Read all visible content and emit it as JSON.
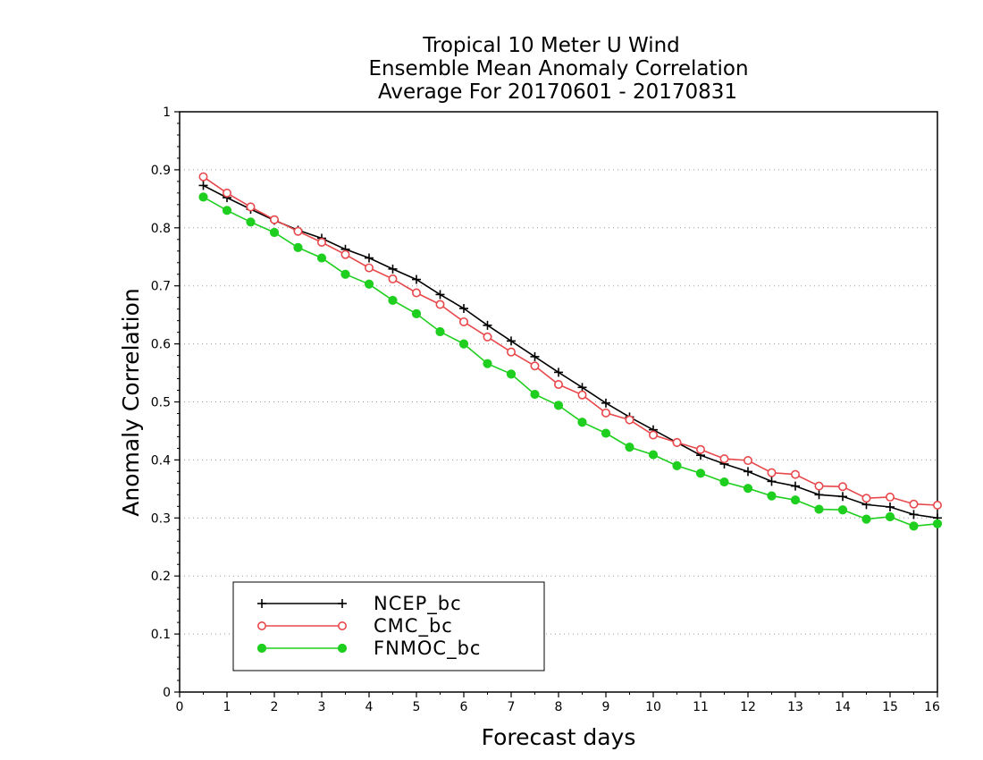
{
  "chart_data": {
    "type": "line",
    "title": [
      "Tropical 10 Meter U Wind",
      "Ensemble Mean Anomaly Correlation",
      "Average For 20170601 - 20170831"
    ],
    "xlabel": "Forecast days",
    "ylabel": "Anomaly Correlation",
    "xlim": [
      0,
      16
    ],
    "ylim": [
      0,
      1
    ],
    "xticks": [
      "0",
      "1",
      "2",
      "3",
      "4",
      "5",
      "6",
      "7",
      "8",
      "9",
      "10",
      "11",
      "12",
      "13",
      "14",
      "15",
      "16"
    ],
    "yticks": [
      "0",
      "0.1",
      "0.2",
      "0.3",
      "0.4",
      "0.5",
      "0.6",
      "0.7",
      "0.8",
      "0.9",
      "1"
    ],
    "grid": "horizontal dotted",
    "legend_position": "bottom-left",
    "x": [
      0.5,
      1,
      1.5,
      2,
      2.5,
      3,
      3.5,
      4,
      4.5,
      5,
      5.5,
      6,
      6.5,
      7,
      7.5,
      8,
      8.5,
      9,
      9.5,
      10,
      10.5,
      11,
      11.5,
      12,
      12.5,
      13,
      13.5,
      14,
      14.5,
      15,
      15.5,
      16
    ],
    "series": [
      {
        "name": "NCEP_bc",
        "color": "#000000",
        "marker": "plus",
        "values": [
          0.873,
          0.852,
          0.832,
          0.813,
          0.796,
          0.782,
          0.763,
          0.748,
          0.729,
          0.711,
          0.685,
          0.661,
          0.632,
          0.605,
          0.578,
          0.551,
          0.525,
          0.498,
          0.474,
          0.452,
          0.43,
          0.408,
          0.393,
          0.38,
          0.363,
          0.355,
          0.34,
          0.337,
          0.323,
          0.319,
          0.306,
          0.3
        ]
      },
      {
        "name": "CMC_bc",
        "color": "#e8484b",
        "marker": "open-circle",
        "values": [
          0.888,
          0.86,
          0.836,
          0.814,
          0.794,
          0.775,
          0.754,
          0.731,
          0.712,
          0.688,
          0.668,
          0.638,
          0.612,
          0.586,
          0.562,
          0.53,
          0.512,
          0.481,
          0.469,
          0.443,
          0.43,
          0.418,
          0.402,
          0.399,
          0.378,
          0.375,
          0.355,
          0.354,
          0.334,
          0.336,
          0.324,
          0.322
        ]
      },
      {
        "name": "FNMOC_bc",
        "color": "#1fcf1f",
        "marker": "filled-circle",
        "values": [
          0.853,
          0.83,
          0.81,
          0.792,
          0.766,
          0.748,
          0.72,
          0.703,
          0.675,
          0.652,
          0.621,
          0.6,
          0.566,
          0.548,
          0.513,
          0.494,
          0.465,
          0.446,
          0.422,
          0.409,
          0.39,
          0.377,
          0.362,
          0.351,
          0.338,
          0.331,
          0.315,
          0.314,
          0.298,
          0.302,
          0.286,
          0.29
        ]
      }
    ]
  }
}
